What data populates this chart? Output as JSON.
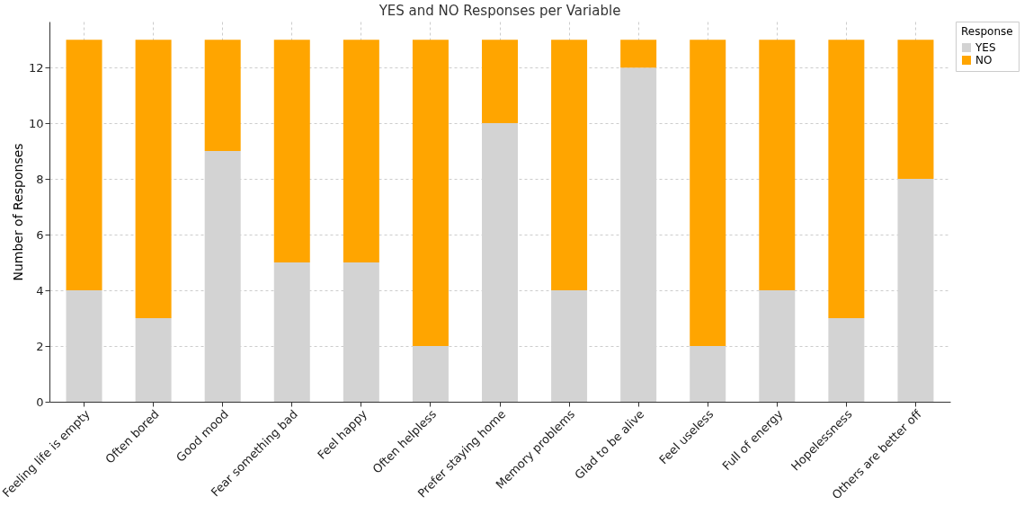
{
  "chart_data": {
    "type": "bar",
    "title": "YES and NO Responses per Variable",
    "ylabel": "Number of Responses",
    "legend_title": "Response",
    "categories": [
      "Feeling life is empty",
      "Often bored",
      "Good mood",
      "Fear something bad",
      "Feel happy",
      "Often helpless",
      "Prefer staying home",
      "Memory problems",
      "Glad to be alive",
      "Feel useless",
      "Full of energy",
      "Hopelessness",
      "Others are better off"
    ],
    "series": [
      {
        "name": "YES",
        "color": "#d3d3d3",
        "values": [
          4,
          3,
          9,
          5,
          5,
          2,
          10,
          4,
          12,
          2,
          4,
          3,
          8
        ]
      },
      {
        "name": "NO",
        "color": "#ffa500",
        "values": [
          9,
          10,
          4,
          8,
          8,
          11,
          3,
          9,
          1,
          11,
          9,
          10,
          5
        ]
      }
    ],
    "stacked": true,
    "ylim": [
      0,
      13.65
    ],
    "yticks": [
      0,
      2,
      4,
      6,
      8,
      10,
      12
    ],
    "grid": true,
    "legend": "top right"
  }
}
